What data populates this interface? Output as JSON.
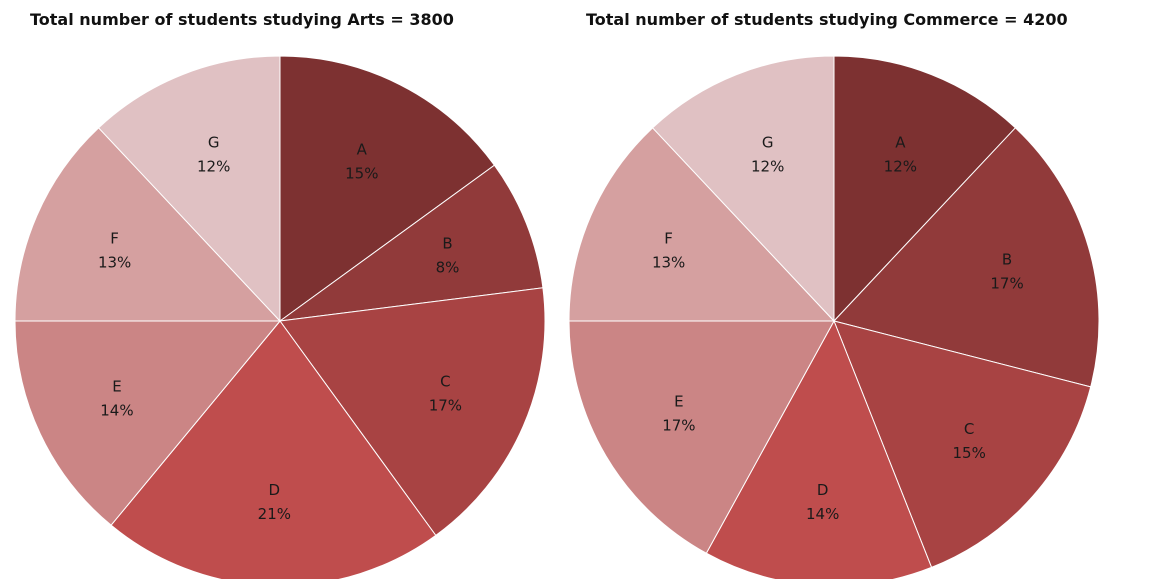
{
  "chart_data": [
    {
      "type": "pie",
      "title": "Total number of students studying Arts = 3800",
      "categories": [
        "A",
        "B",
        "C",
        "D",
        "E",
        "F",
        "G"
      ],
      "values": [
        15,
        8,
        17,
        21,
        14,
        13,
        12
      ],
      "value_labels": [
        "15%",
        "8%",
        "17%",
        "21%",
        "14%",
        "13%",
        "12%"
      ],
      "colors": [
        "#7d3131",
        "#913a3a",
        "#a84343",
        "#bf4d4d",
        "#cb8585",
        "#d5a0a0",
        "#e0c1c3"
      ]
    },
    {
      "type": "pie",
      "title": "Total number of students studying Commerce = 4200",
      "categories": [
        "A",
        "B",
        "C",
        "D",
        "E",
        "F",
        "G"
      ],
      "values": [
        12,
        17,
        15,
        14,
        17,
        13,
        12
      ],
      "value_labels": [
        "12%",
        "17%",
        "15%",
        "14%",
        "17%",
        "13%",
        "12%"
      ],
      "colors": [
        "#7d3131",
        "#913a3a",
        "#a84343",
        "#bf4d4d",
        "#cb8585",
        "#d5a0a0",
        "#e0c1c3"
      ]
    }
  ]
}
